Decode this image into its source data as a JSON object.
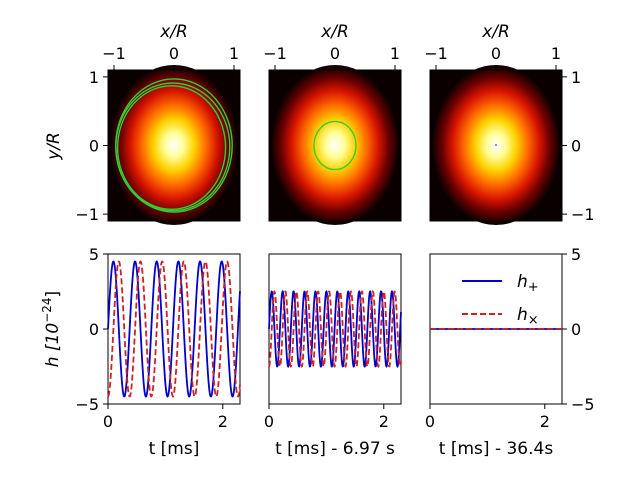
{
  "chart_data": [
    {
      "type": "heatmap",
      "panel": "density-1",
      "colormap": "hot",
      "xlabel": "x/R",
      "ylabel": "y/R",
      "xlim": [
        -1.1,
        1.1
      ],
      "ylim": [
        -1.1,
        1.1
      ],
      "xticks": [
        -1,
        0,
        1
      ],
      "yticks": [
        -1,
        0,
        1
      ],
      "orbits": [
        {
          "cx": 0.0,
          "cy": 0.0,
          "rx": 0.97,
          "ry": 0.97
        },
        {
          "cx": -0.02,
          "cy": -0.02,
          "rx": 0.95,
          "ry": 0.93
        },
        {
          "cx": -0.04,
          "cy": -0.03,
          "rx": 0.9,
          "ry": 0.9
        }
      ]
    },
    {
      "type": "heatmap",
      "panel": "density-2",
      "colormap": "hot",
      "xlabel": "x/R",
      "xlim": [
        -1.1,
        1.1
      ],
      "ylim": [
        -1.1,
        1.1
      ],
      "xticks": [
        -1,
        0,
        1
      ],
      "orbits": [
        {
          "cx": 0.0,
          "cy": 0.0,
          "rx": 0.35,
          "ry": 0.35
        }
      ]
    },
    {
      "type": "heatmap",
      "panel": "density-3",
      "colormap": "hot",
      "xlabel": "x/R",
      "ylabel": "",
      "xlim": [
        -1.1,
        1.1
      ],
      "ylim": [
        -1.1,
        1.1
      ],
      "xticks": [
        -1,
        0,
        1
      ],
      "yticks": [
        -1,
        0,
        1
      ],
      "orbits": []
    },
    {
      "type": "line",
      "panel": "strain-1",
      "xlabel": "t [ms]",
      "ylabel": "h [10^-24]",
      "xlim": [
        0,
        2.3
      ],
      "ylim": [
        -5,
        5
      ],
      "xticks": [
        0,
        2
      ],
      "yticks": [
        -5,
        0,
        5
      ],
      "series": [
        {
          "name": "h+",
          "color": "#0000cc",
          "style": "solid",
          "amplitude": 4.5,
          "frequency_khz": 2.65,
          "phase": 0
        },
        {
          "name": "h×",
          "color": "#cc2222",
          "style": "dashed",
          "amplitude": 4.5,
          "frequency_khz": 2.65,
          "phase": -1.5708
        }
      ]
    },
    {
      "type": "line",
      "panel": "strain-2",
      "xlabel": "t [ms] - 6.97 s",
      "xlim": [
        0,
        2.3
      ],
      "ylim": [
        -5,
        5
      ],
      "xticks": [
        0,
        2
      ],
      "series": [
        {
          "name": "h+",
          "color": "#0000cc",
          "style": "solid",
          "amplitude": 2.5,
          "frequency_khz": 5.25,
          "phase": 0
        },
        {
          "name": "h×",
          "color": "#cc2222",
          "style": "dashed",
          "amplitude": 2.5,
          "frequency_khz": 5.25,
          "phase": -1.5708
        }
      ]
    },
    {
      "type": "line",
      "panel": "strain-3",
      "xlabel": "t [ms] - 36.4s",
      "xlim": [
        0,
        2.3
      ],
      "ylim": [
        -5,
        5
      ],
      "xticks": [
        0,
        2
      ],
      "yticks": [
        -5,
        0,
        5
      ],
      "legend_position": "top-right",
      "series": [
        {
          "name": "h+",
          "color": "#0000cc",
          "style": "solid",
          "amplitude": 0.0,
          "frequency_khz": 0,
          "phase": 0
        },
        {
          "name": "h×",
          "color": "#cc2222",
          "style": "dashed",
          "amplitude": 0.0,
          "frequency_khz": 0,
          "phase": 0
        }
      ]
    }
  ],
  "legend": {
    "plus_label": "h",
    "plus_sub": "+",
    "cross_label": "h",
    "cross_sub": "×"
  },
  "labels": {
    "xR": "x/R",
    "yR": "y/R",
    "h_unit": "h [10",
    "h_exp": "−24",
    "h_close": "]",
    "t1": "t [ms]",
    "t2": "t [ms] - 6.97 s",
    "t3": "t [ms] - 36.4s"
  }
}
